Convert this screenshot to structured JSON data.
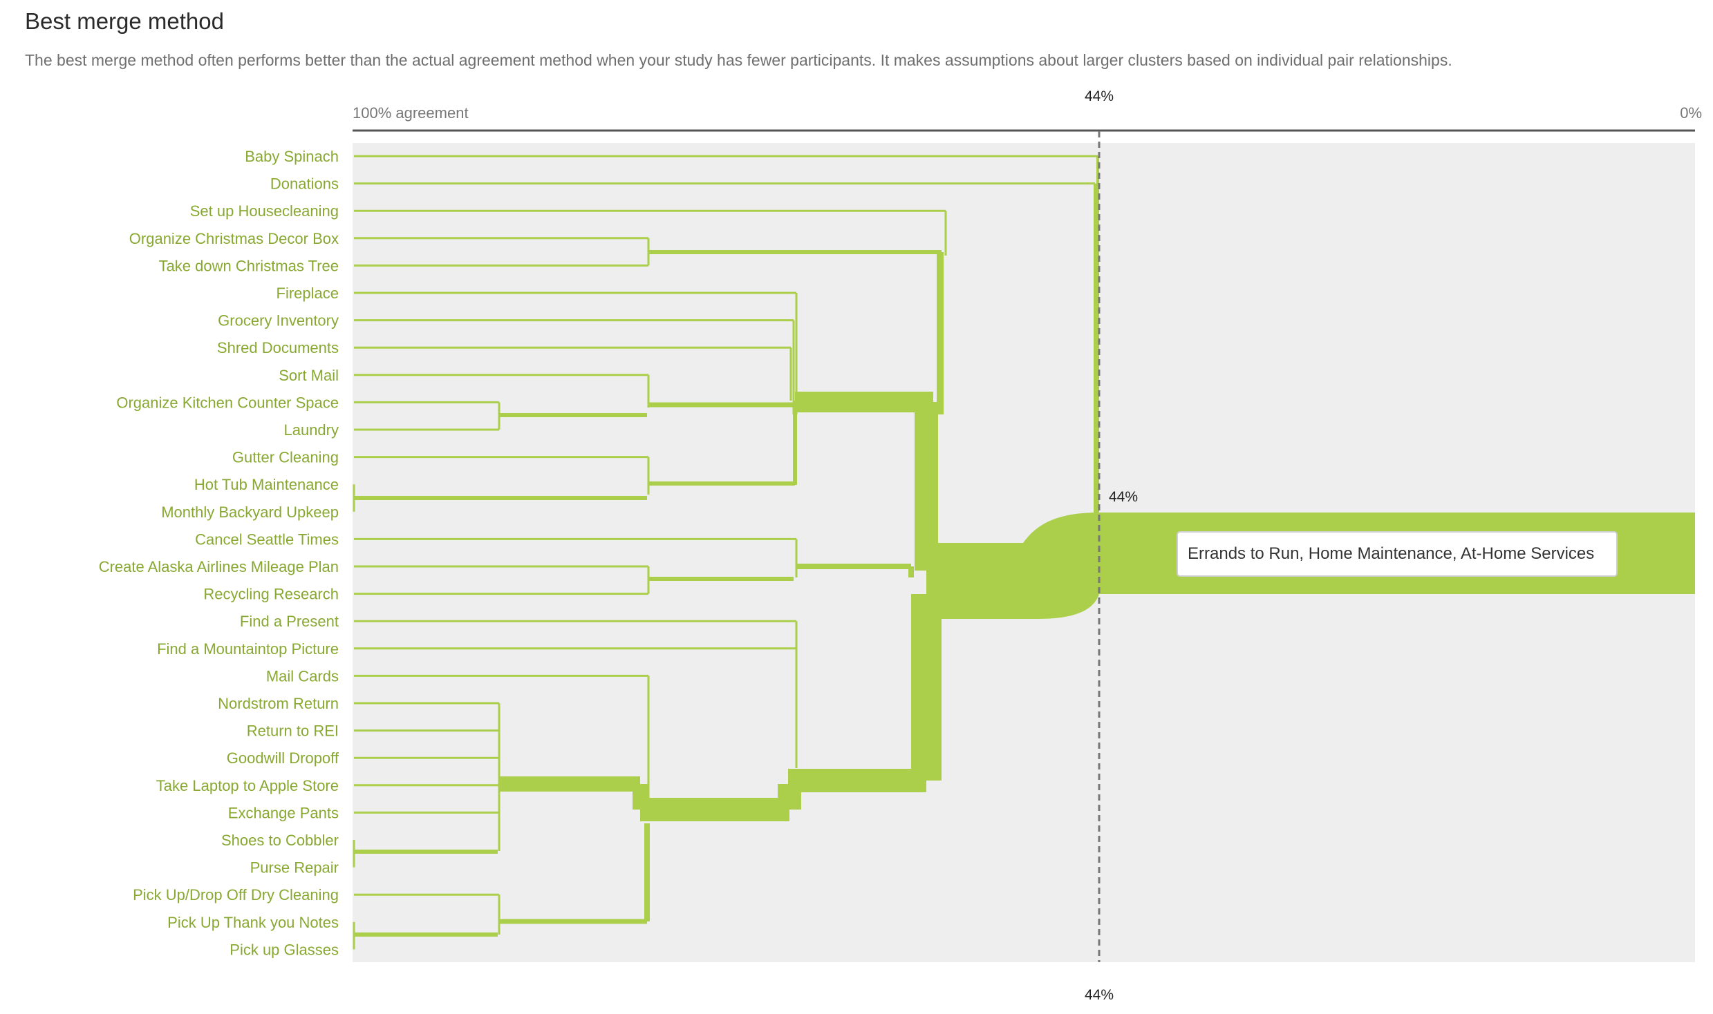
{
  "title": "Best merge method",
  "description": "The best merge method often performs better than the actual agreement method when your study has fewer participants. It makes assumptions about larger clusters based on individual pair relationships.",
  "axis": {
    "left_label": "100% agreement",
    "right_label": "0%"
  },
  "cutoff": {
    "top": "44%",
    "middle": "44%",
    "bottom": "44%"
  },
  "tooltip": "Errands to Run, Home Maintenance, At-Home Services",
  "colors": {
    "accent": "#abcf4a",
    "label": "#88a831",
    "panel": "#eeeeee",
    "axis": "#555555"
  },
  "items": [
    "Baby Spinach",
    "Donations",
    "Set up Housecleaning",
    "Organize Christmas Decor Box",
    "Take down Christmas Tree",
    "Fireplace",
    "Grocery Inventory",
    "Shred Documents",
    "Sort Mail",
    "Organize Kitchen Counter Space",
    "Laundry",
    "Gutter Cleaning",
    "Hot Tub Maintenance",
    "Monthly Backyard Upkeep",
    "Cancel Seattle Times",
    "Create Alaska Airlines Mileage Plan",
    "Recycling Research",
    "Find a Present",
    "Find a Mountaintop Picture",
    "Mail Cards",
    "Nordstrom Return",
    "Return to REI",
    "Goodwill Dropoff",
    "Take Laptop to Apple Store",
    "Exchange Pants",
    "Shoes to Cobbler",
    "Purse Repair",
    "Pick Up/Drop Off Dry Cleaning",
    "Pick Up Thank you Notes",
    "Pick up Glasses"
  ]
}
